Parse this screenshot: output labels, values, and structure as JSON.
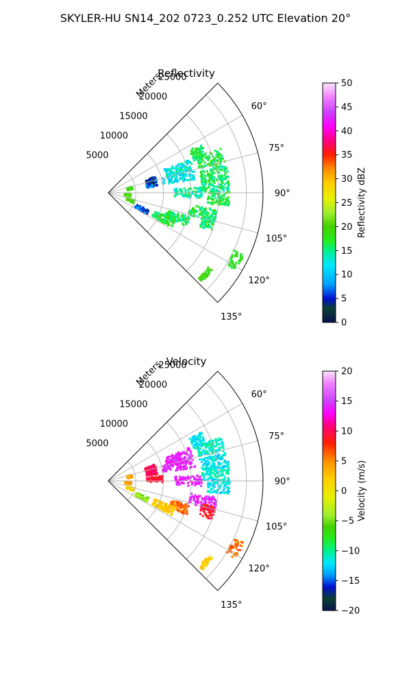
{
  "figure_title": "SKYLER-HU  SN14_202  0723_0.252 UTC Elevation 20°",
  "chart_data": [
    {
      "type": "heatmap",
      "projection": "polar-sector",
      "title": "Reflectivity",
      "radial_label": "Meters",
      "r_ticks": [
        5000,
        10000,
        15000,
        20000,
        25000
      ],
      "r_tick_labels": [
        "5000",
        "10000",
        "15000",
        "20000",
        "25000"
      ],
      "r_max": 28000,
      "theta_range_deg": [
        45,
        135
      ],
      "theta_ticks": [
        60,
        75,
        90,
        105,
        120,
        135
      ],
      "theta_tick_labels": [
        "60°",
        "75°",
        "90°",
        "105°",
        "120°",
        "135°"
      ],
      "grid": true,
      "colorbar": {
        "label": "Reflectivity dBZ",
        "min": 0,
        "max": 50,
        "ticks": [
          0,
          5,
          10,
          15,
          20,
          25,
          30,
          35,
          40,
          45,
          50
        ],
        "tick_labels": [
          "0",
          "5",
          "10",
          "15",
          "20",
          "25",
          "30",
          "35",
          "40",
          "45",
          "50"
        ],
        "stops": [
          [
            0,
            "#0a1050"
          ],
          [
            3,
            "#0b4030"
          ],
          [
            5,
            "#0010d0"
          ],
          [
            8,
            "#00a0ff"
          ],
          [
            12,
            "#00e8ff"
          ],
          [
            15,
            "#00f090"
          ],
          [
            17,
            "#22ee22"
          ],
          [
            20,
            "#44d000"
          ],
          [
            23,
            "#a0ee30"
          ],
          [
            26,
            "#e8f000"
          ],
          [
            29,
            "#ffd000"
          ],
          [
            32,
            "#ff9000"
          ],
          [
            35,
            "#ff2000"
          ],
          [
            38,
            "#ff0080"
          ],
          [
            41,
            "#ff00ff"
          ],
          [
            44,
            "#cc40ff"
          ],
          [
            47,
            "#f080ff"
          ],
          [
            50,
            "#fbe0fb"
          ]
        ]
      },
      "clusters": [
        {
          "theta": 66,
          "r_min": 16500,
          "r_max": 19000,
          "value": 16,
          "spread": 3,
          "density": 0.85
        },
        {
          "theta": 72,
          "r_min": 17000,
          "r_max": 22000,
          "value": 17,
          "spread": 3,
          "density": 0.8
        },
        {
          "theta": 71,
          "r_min": 11000,
          "r_max": 16000,
          "value": 13,
          "spread": 3,
          "density": 0.6
        },
        {
          "theta": 78,
          "r_min": 10000,
          "r_max": 16000,
          "value": 12,
          "spread": 3,
          "density": 0.55
        },
        {
          "theta": 80,
          "r_min": 17000,
          "r_max": 22000,
          "value": 16,
          "spread": 3,
          "density": 0.8
        },
        {
          "theta": 86,
          "r_min": 17000,
          "r_max": 22000,
          "value": 16,
          "spread": 3,
          "density": 0.75
        },
        {
          "theta": 93,
          "r_min": 18000,
          "r_max": 22000,
          "value": 17,
          "spread": 3,
          "density": 0.8
        },
        {
          "theta": 90,
          "r_min": 12000,
          "r_max": 17000,
          "value": 14,
          "spread": 3,
          "density": 0.5
        },
        {
          "theta": 79,
          "r_min": 7000,
          "r_max": 9000,
          "value": 6,
          "spread": 3,
          "density": 0.6
        },
        {
          "theta": 74,
          "r_min": 7000,
          "r_max": 9000,
          "value": 5,
          "spread": 3,
          "density": 0.5
        },
        {
          "theta": 102,
          "r_min": 15000,
          "r_max": 20000,
          "value": 16,
          "spread": 3,
          "density": 0.75
        },
        {
          "theta": 110,
          "r_min": 11000,
          "r_max": 15500,
          "value": 16,
          "spread": 3,
          "density": 0.85
        },
        {
          "theta": 115,
          "r_min": 9000,
          "r_max": 13000,
          "value": 17,
          "spread": 3,
          "density": 0.8
        },
        {
          "theta": 116,
          "r_min": 5500,
          "r_max": 8000,
          "value": 6,
          "spread": 3,
          "density": 0.55
        },
        {
          "theta": 107,
          "r_min": 17500,
          "r_max": 20000,
          "value": 16,
          "spread": 3,
          "density": 0.5
        },
        {
          "theta": 79,
          "r_min": 3500,
          "r_max": 4500,
          "value": 19,
          "spread": 2,
          "density": 0.4
        },
        {
          "theta": 96,
          "r_min": 3000,
          "r_max": 4200,
          "value": 20,
          "spread": 2,
          "density": 0.4
        },
        {
          "theta": 109,
          "r_min": 3500,
          "r_max": 5000,
          "value": 20,
          "spread": 2,
          "density": 0.4
        },
        {
          "theta": 118,
          "r_min": 25000,
          "r_max": 27000,
          "value": 18,
          "spread": 2,
          "density": 0.3
        },
        {
          "theta": 130,
          "r_min": 22500,
          "r_max": 23500,
          "value": 19,
          "spread": 2,
          "density": 0.4
        }
      ]
    },
    {
      "type": "heatmap",
      "projection": "polar-sector",
      "title": "Velocity",
      "radial_label": "Meters",
      "r_ticks": [
        5000,
        10000,
        15000,
        20000,
        25000
      ],
      "r_tick_labels": [
        "5000",
        "10000",
        "15000",
        "20000",
        "25000"
      ],
      "r_max": 28000,
      "theta_range_deg": [
        45,
        135
      ],
      "theta_ticks": [
        60,
        75,
        90,
        105,
        120,
        135
      ],
      "theta_tick_labels": [
        "60°",
        "75°",
        "90°",
        "105°",
        "120°",
        "135°"
      ],
      "grid": true,
      "colorbar": {
        "label": "Velocity (m/s)",
        "min": -20,
        "max": 20,
        "ticks": [
          -20,
          -15,
          -10,
          -5,
          0,
          5,
          10,
          15,
          20
        ],
        "tick_labels": [
          "−20",
          "−15",
          "−10",
          "−5",
          "0",
          "5",
          "10",
          "15",
          "20"
        ],
        "stops": [
          [
            -20,
            "#0a1050"
          ],
          [
            -18,
            "#0b4030"
          ],
          [
            -16,
            "#0010d0"
          ],
          [
            -14,
            "#00a0ff"
          ],
          [
            -12,
            "#00e8ff"
          ],
          [
            -10,
            "#00f090"
          ],
          [
            -8,
            "#22ee22"
          ],
          [
            -6,
            "#44d000"
          ],
          [
            -4,
            "#a0ee30"
          ],
          [
            -1,
            "#e8f000"
          ],
          [
            2,
            "#ffd000"
          ],
          [
            5,
            "#ff9000"
          ],
          [
            8,
            "#ff2000"
          ],
          [
            11,
            "#ff0080"
          ],
          [
            13,
            "#ff00ff"
          ],
          [
            15,
            "#cc40ff"
          ],
          [
            18,
            "#f080ff"
          ],
          [
            20,
            "#fbe0fb"
          ]
        ]
      },
      "clusters": [
        {
          "theta": 66,
          "r_min": 16500,
          "r_max": 19000,
          "value": -12,
          "spread": 1.5,
          "density": 0.85
        },
        {
          "theta": 72,
          "r_min": 17000,
          "r_max": 22000,
          "value": -11,
          "spread": 1.5,
          "density": 0.8
        },
        {
          "theta": 80,
          "r_min": 17000,
          "r_max": 22000,
          "value": -12,
          "spread": 1.5,
          "density": 0.8
        },
        {
          "theta": 86,
          "r_min": 17000,
          "r_max": 22000,
          "value": -11,
          "spread": 1.5,
          "density": 0.75
        },
        {
          "theta": 93,
          "r_min": 18000,
          "r_max": 22000,
          "value": -12,
          "spread": 1.5,
          "density": 0.8
        },
        {
          "theta": 71,
          "r_min": 11000,
          "r_max": 16000,
          "value": 14,
          "spread": 1.5,
          "density": 0.65
        },
        {
          "theta": 78,
          "r_min": 10000,
          "r_max": 16000,
          "value": 14,
          "spread": 1.5,
          "density": 0.6
        },
        {
          "theta": 90,
          "r_min": 12000,
          "r_max": 17000,
          "value": 14,
          "spread": 1.5,
          "density": 0.55
        },
        {
          "theta": 79,
          "r_min": 7000,
          "r_max": 9000,
          "value": 10,
          "spread": 1.5,
          "density": 0.6
        },
        {
          "theta": 74,
          "r_min": 7000,
          "r_max": 9000,
          "value": 10,
          "spread": 1.5,
          "density": 0.5
        },
        {
          "theta": 88,
          "r_min": 7000,
          "r_max": 10000,
          "value": 9,
          "spread": 1.5,
          "density": 0.45
        },
        {
          "theta": 102,
          "r_min": 15000,
          "r_max": 20000,
          "value": 14,
          "spread": 1.5,
          "density": 0.75
        },
        {
          "theta": 110,
          "r_min": 12000,
          "r_max": 15500,
          "value": 6,
          "spread": 1.5,
          "density": 0.85
        },
        {
          "theta": 115,
          "r_min": 9000,
          "r_max": 13000,
          "value": 2,
          "spread": 1.5,
          "density": 0.8
        },
        {
          "theta": 116,
          "r_min": 5500,
          "r_max": 8000,
          "value": -4,
          "spread": 1.5,
          "density": 0.55
        },
        {
          "theta": 107,
          "r_min": 17500,
          "r_max": 20000,
          "value": 9,
          "spread": 1.5,
          "density": 0.5
        },
        {
          "theta": 79,
          "r_min": 3500,
          "r_max": 4500,
          "value": 4,
          "spread": 1.5,
          "density": 0.4
        },
        {
          "theta": 96,
          "r_min": 3000,
          "r_max": 4200,
          "value": 4,
          "spread": 1.5,
          "density": 0.4
        },
        {
          "theta": 109,
          "r_min": 3500,
          "r_max": 5000,
          "value": 1,
          "spread": 1.5,
          "density": 0.4
        },
        {
          "theta": 118,
          "r_min": 25000,
          "r_max": 27000,
          "value": 6,
          "spread": 1.5,
          "density": 0.3
        },
        {
          "theta": 130,
          "r_min": 22500,
          "r_max": 23500,
          "value": 2,
          "spread": 1.5,
          "density": 0.4
        }
      ]
    }
  ]
}
